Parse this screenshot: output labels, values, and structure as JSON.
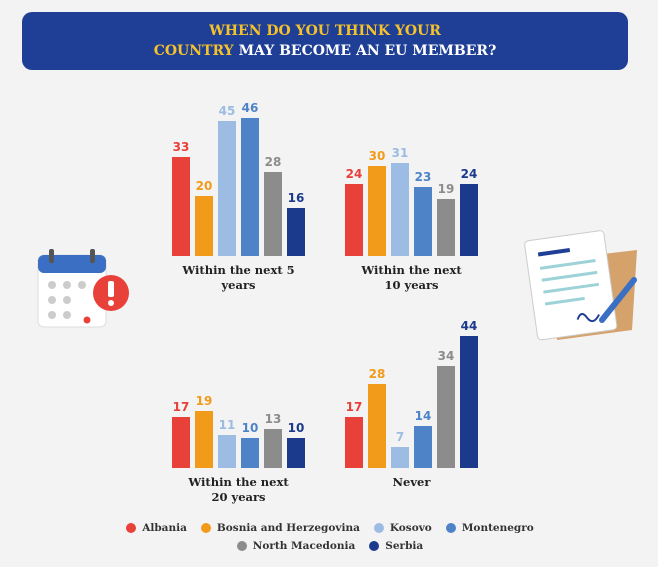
{
  "chart_data": {
    "type": "bar",
    "title": [
      "WHEN DO YOU THINK YOUR",
      "COUNTRY",
      "MAY BECOME AN EU MEMBER?"
    ],
    "categories": [
      "Within the next 5 years",
      "Within the next 10 years",
      "Within the next 20 years",
      "Never"
    ],
    "series": [
      {
        "name": "Albania",
        "color": "#e8413a",
        "values": [
          33,
          24,
          17,
          17
        ]
      },
      {
        "name": "Bosnia and Herzegovina",
        "color": "#f29a1a",
        "values": [
          20,
          30,
          19,
          28
        ]
      },
      {
        "name": "Kosovo",
        "color": "#9dbce3",
        "values": [
          45,
          31,
          11,
          7
        ]
      },
      {
        "name": "Montenegro",
        "color": "#4f83c8",
        "values": [
          46,
          23,
          10,
          14
        ]
      },
      {
        "name": "North Macedonia",
        "color": "#8c8c8c",
        "values": [
          28,
          19,
          13,
          34
        ]
      },
      {
        "name": "Serbia",
        "color": "#1b3a8c",
        "values": [
          16,
          24,
          10,
          44
        ]
      }
    ]
  }
}
